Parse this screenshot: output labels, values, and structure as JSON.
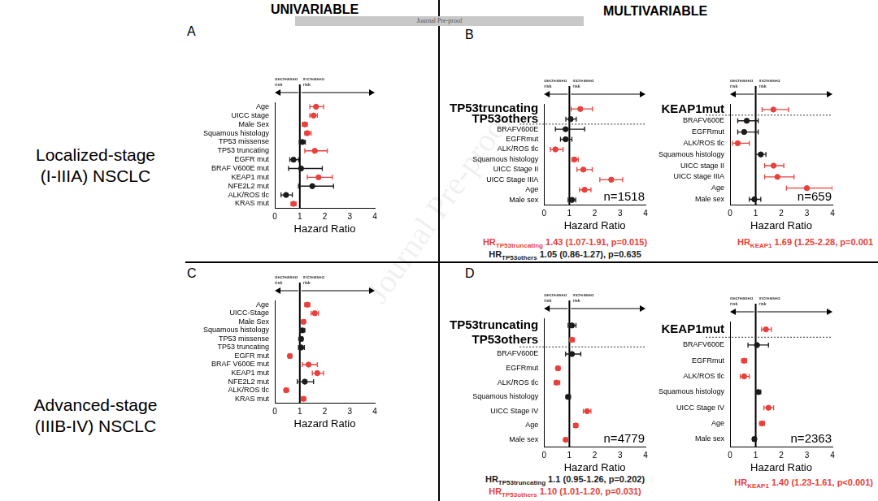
{
  "header": {
    "left": "UNIVARIABLE",
    "right": "MULTIVARIABLE",
    "banner": "Journal Pre-proof"
  },
  "watermark": "Journal Pre-proof",
  "row_labels": [
    [
      "Localized-stage",
      "(I-IIIA) NSCLC"
    ],
    [
      "Advanced-stage",
      "(IIIB-IV) NSCLC"
    ]
  ],
  "chart_data": [
    {
      "type": "forest",
      "panel": "A",
      "categories": [
        "Age",
        "UICC stage",
        "Male Sex",
        "Squamous histology",
        "TP53 missense",
        "TP53 truncating",
        "EGFR mut",
        "BRAF V600E mut",
        "KEAP1 mut",
        "NFE2L2 mut",
        "ALK/ROS tlc",
        "KRAS mut"
      ],
      "values": [
        1.65,
        1.55,
        1.2,
        1.3,
        1.1,
        1.6,
        0.75,
        1.05,
        1.75,
        1.5,
        0.45,
        0.75
      ],
      "ci_lower": [
        1.4,
        1.4,
        1.1,
        1.2,
        0.98,
        1.2,
        0.6,
        0.55,
        1.3,
        0.95,
        0.25,
        0.65
      ],
      "ci_upper": [
        1.95,
        1.7,
        1.3,
        1.45,
        1.22,
        2.1,
        0.95,
        1.9,
        2.3,
        2.35,
        0.7,
        0.85
      ],
      "colors": [
        "#e8403c",
        "#e8403c",
        "#e8403c",
        "#e8403c",
        "#1a1a1a",
        "#e8403c",
        "#1a1a1a",
        "#1a1a1a",
        "#e8403c",
        "#1a1a1a",
        "#1a1a1a",
        "#e8403c"
      ],
      "xlim": [
        0,
        4
      ],
      "xticks": [
        0,
        1,
        2,
        3,
        4
      ],
      "x_label": "Hazard Ratio",
      "reference_line": 1,
      "grid": false,
      "direction_labels": [
        [
          "decreased",
          "risk"
        ],
        [
          "increased",
          "risk"
        ]
      ]
    },
    {
      "type": "forest",
      "panel": "B",
      "categories": [
        "TP53truncating",
        "TP53others",
        "BRAFV600E",
        "EGFRmut",
        "ALK/ROS tlc",
        "Squamous histology",
        "UICC Stage II",
        "UICC Stage IIIA",
        "Age",
        "Male sex"
      ],
      "values": [
        1.43,
        1.05,
        0.85,
        0.85,
        0.45,
        1.2,
        1.55,
        2.65,
        1.6,
        1.1
      ],
      "ci_lower": [
        1.07,
        0.86,
        0.45,
        0.65,
        0.25,
        1.1,
        1.3,
        2.2,
        1.4,
        0.95
      ],
      "ci_upper": [
        1.91,
        1.27,
        1.6,
        1.1,
        0.75,
        1.35,
        1.9,
        3.1,
        1.85,
        1.25
      ],
      "colors": [
        "#e8403c",
        "#1a1a1a",
        "#1a1a1a",
        "#1a1a1a",
        "#e8403c",
        "#e8403c",
        "#e8403c",
        "#e8403c",
        "#e8403c",
        "#1a1a1a"
      ],
      "emphasis": [
        true,
        true,
        false,
        false,
        false,
        false,
        false,
        false,
        false,
        false
      ],
      "xlim": [
        0,
        4
      ],
      "xticks": [
        0,
        1,
        2,
        3,
        4
      ],
      "x_label": "Hazard Ratio",
      "reference_line": 1,
      "grid": false,
      "direction_labels": [
        [
          "decreased",
          "risk"
        ],
        [
          "increased",
          "risk"
        ]
      ],
      "n_label": "n=1518",
      "hr_notes": [
        {
          "prefix": "HR",
          "subscript": "TP53truncating",
          "text": " 1.43 (1.07-1.91, p=0.015)",
          "color": "#e8403c"
        },
        {
          "prefix": "HR",
          "subscript": "TP53others",
          "text": " 1.05 (0.86-1.27), p=0.635",
          "color": "#1a1a1a"
        }
      ]
    },
    {
      "type": "forest",
      "categories": [
        "KEAP1mut",
        "BRAFV600E",
        "EGFRmut",
        "ALK/ROS tlc",
        "Squamous histology",
        "UICC stage II",
        "UICC stage IIIA",
        "Age",
        "Male sex"
      ],
      "values": [
        1.69,
        0.65,
        0.55,
        0.3,
        1.2,
        1.7,
        1.85,
        3.0,
        0.95
      ],
      "ci_lower": [
        1.25,
        0.3,
        0.3,
        0.1,
        1.0,
        1.35,
        1.35,
        2.2,
        0.75
      ],
      "ci_upper": [
        2.28,
        1.1,
        1.1,
        0.75,
        1.4,
        2.1,
        2.5,
        4.0,
        1.2
      ],
      "colors": [
        "#e8403c",
        "#1a1a1a",
        "#1a1a1a",
        "#e8403c",
        "#1a1a1a",
        "#e8403c",
        "#e8403c",
        "#e8403c",
        "#1a1a1a"
      ],
      "emphasis": [
        true,
        false,
        false,
        false,
        false,
        false,
        false,
        false,
        false
      ],
      "xlim": [
        0,
        4
      ],
      "xticks": [
        0,
        1,
        2,
        3,
        4
      ],
      "x_label": "Hazard Ratio",
      "reference_line": 1,
      "grid": false,
      "direction_labels": [
        [
          "decreased",
          "risk"
        ],
        [
          "increased",
          "risk"
        ]
      ],
      "n_label": "n=659",
      "hr_notes": [
        {
          "prefix": "HR",
          "subscript": "KEAP1",
          "text": " 1.69 (1.25-2.28, p=0.001",
          "color": "#e8403c"
        }
      ]
    },
    {
      "type": "forest",
      "panel": "C",
      "categories": [
        "Age",
        "UICC-Stage",
        "Male Sex",
        "Squamous histology",
        "TP53 missense",
        "TP53 truncating",
        "EGFR mut",
        "BRAF V600E mut",
        "KEAP1 mut",
        "NFE2L2 mut",
        "ALK/ROS tlc",
        "KRAS mut"
      ],
      "values": [
        1.3,
        1.6,
        1.15,
        1.1,
        1.05,
        1.05,
        0.6,
        1.35,
        1.7,
        1.2,
        0.45,
        1.15
      ],
      "ci_lower": [
        1.2,
        1.45,
        1.08,
        1.0,
        0.98,
        0.95,
        0.55,
        1.1,
        1.5,
        0.9,
        0.38,
        1.07
      ],
      "ci_upper": [
        1.4,
        1.75,
        1.22,
        1.2,
        1.12,
        1.18,
        0.67,
        1.7,
        1.95,
        1.55,
        0.55,
        1.23
      ],
      "colors": [
        "#e8403c",
        "#e8403c",
        "#e8403c",
        "#1a1a1a",
        "#1a1a1a",
        "#1a1a1a",
        "#e8403c",
        "#e8403c",
        "#e8403c",
        "#1a1a1a",
        "#e8403c",
        "#e8403c"
      ],
      "xlim": [
        0,
        4
      ],
      "xticks": [
        0,
        1,
        2,
        3,
        4
      ],
      "x_label": "Hazard Ratio",
      "reference_line": 1,
      "grid": false,
      "direction_labels": [
        [
          "decreased",
          "risk"
        ],
        [
          "increased",
          "risk"
        ]
      ]
    },
    {
      "type": "forest",
      "panel": "D",
      "categories": [
        "TP53truncating",
        "TP53others",
        "BRAFV600E",
        "EGFRmut",
        "ALK/ROS tlc",
        "Squamous histology",
        "UICC Stage IV",
        "Age",
        "Male sex"
      ],
      "values": [
        1.1,
        1.1,
        1.1,
        0.55,
        0.5,
        0.95,
        1.7,
        1.25,
        0.85
      ],
      "ci_lower": [
        0.95,
        1.01,
        0.85,
        0.48,
        0.4,
        0.87,
        1.55,
        1.17,
        0.8
      ],
      "ci_upper": [
        1.26,
        1.2,
        1.45,
        0.63,
        0.62,
        1.04,
        1.85,
        1.33,
        0.92
      ],
      "colors": [
        "#1a1a1a",
        "#e8403c",
        "#1a1a1a",
        "#e8403c",
        "#e8403c",
        "#1a1a1a",
        "#e8403c",
        "#e8403c",
        "#e8403c"
      ],
      "emphasis": [
        true,
        true,
        false,
        false,
        false,
        false,
        false,
        false,
        false
      ],
      "xlim": [
        0,
        4
      ],
      "xticks": [
        0,
        1,
        2,
        3,
        4
      ],
      "x_label": "Hazard Ratio",
      "reference_line": 1,
      "grid": false,
      "direction_labels": [
        [
          "decreased",
          "risk"
        ],
        [
          "increased",
          "risk"
        ]
      ],
      "n_label": "n=4779",
      "hr_notes": [
        {
          "prefix": "HR",
          "subscript": "TP53truncating",
          "text": " 1.1 (0.95-1.26, p=0.202)",
          "color": "#1a1a1a"
        },
        {
          "prefix": "HR",
          "subscript": "TP53others",
          "text": " 1.10 (1.01-1.20, p=0.031)",
          "color": "#e8403c"
        }
      ]
    },
    {
      "type": "forest",
      "categories": [
        "KEAP1mut",
        "BRAFV600E",
        "EGFRmut",
        "ALK/ROS tlc",
        "Squamous histology",
        "UICC Stage IV",
        "Age",
        "Male sex"
      ],
      "values": [
        1.4,
        1.05,
        0.55,
        0.55,
        1.1,
        1.5,
        1.25,
        0.95
      ],
      "ci_lower": [
        1.23,
        0.7,
        0.45,
        0.4,
        1.0,
        1.32,
        1.15,
        0.88
      ],
      "ci_upper": [
        1.61,
        1.5,
        0.65,
        0.75,
        1.2,
        1.7,
        1.35,
        1.02
      ],
      "colors": [
        "#e8403c",
        "#1a1a1a",
        "#e8403c",
        "#e8403c",
        "#1a1a1a",
        "#e8403c",
        "#e8403c",
        "#1a1a1a"
      ],
      "emphasis": [
        true,
        false,
        false,
        false,
        false,
        false,
        false,
        false
      ],
      "xlim": [
        0,
        4
      ],
      "xticks": [
        0,
        1,
        2,
        3,
        4
      ],
      "x_label": "Hazard Ratio",
      "reference_line": 1,
      "grid": false,
      "direction_labels": [
        [
          "decreased",
          "risk"
        ],
        [
          "increased",
          "risk"
        ]
      ],
      "n_label": "n=2363",
      "hr_notes": [
        {
          "prefix": "HR",
          "subscript": "KEAP1",
          "text": " 1.40 (1.23-1.61, p<0.001)",
          "color": "#e8403c"
        }
      ]
    }
  ]
}
